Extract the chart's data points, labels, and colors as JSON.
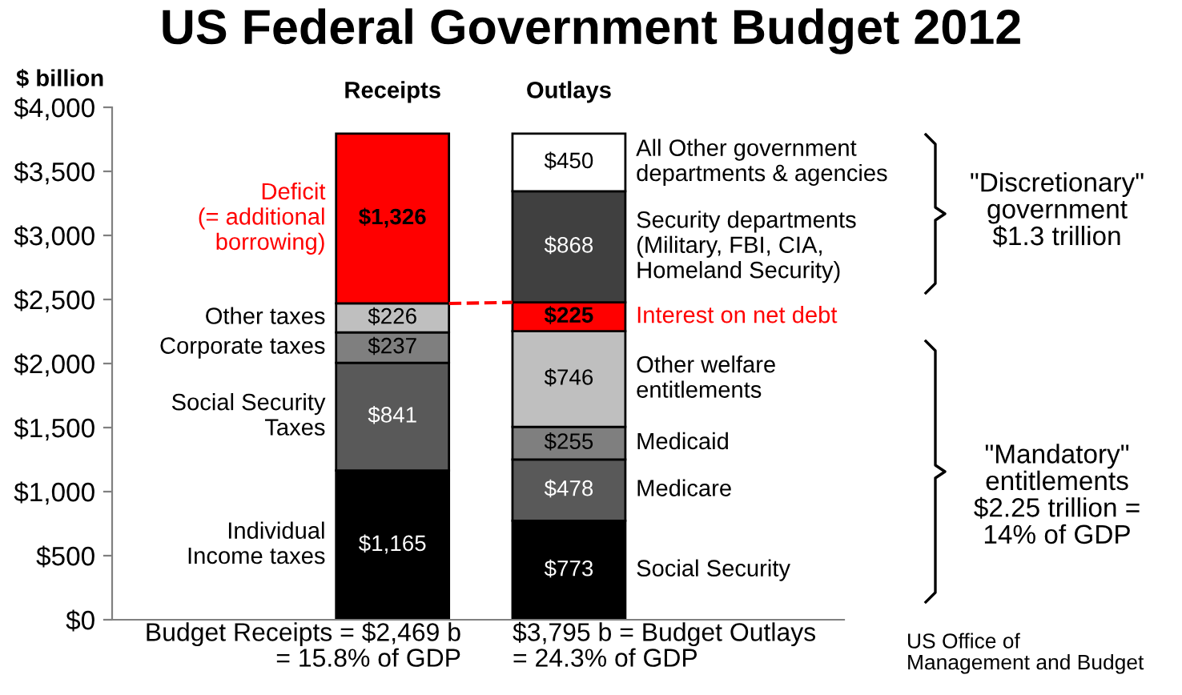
{
  "chart_data": {
    "type": "bar",
    "stacked": true,
    "title": "US Federal Government Budget 2012",
    "ylabel": "$ billion",
    "categories": [
      "Receipts",
      "Outlays"
    ],
    "ylim": [
      0,
      4000
    ],
    "yticks": [
      {
        "value": 0,
        "label": "$0"
      },
      {
        "value": 500,
        "label": "$500"
      },
      {
        "value": 1000,
        "label": "$1,000"
      },
      {
        "value": 1500,
        "label": "$1,500"
      },
      {
        "value": 2000,
        "label": "$2,000"
      },
      {
        "value": 2500,
        "label": "$2,500"
      },
      {
        "value": 3000,
        "label": "$3,000"
      },
      {
        "value": 3500,
        "label": "$3,500"
      },
      {
        "value": 4000,
        "label": "$4,000"
      }
    ],
    "series": [
      {
        "name": "Individual\nIncome taxes",
        "color": "#000000",
        "values": [
          1165,
          null
        ],
        "value_labels": [
          "$1,165",
          null
        ]
      },
      {
        "name": "Social Security\nTaxes",
        "color": "#595959",
        "values": [
          841,
          null
        ],
        "value_labels": [
          "$841",
          null
        ]
      },
      {
        "name": "Corporate taxes",
        "color": "#7f7f7f",
        "values": [
          237,
          null
        ],
        "value_labels": [
          "$237",
          null
        ]
      },
      {
        "name": "Other taxes",
        "color": "#bfbfbf",
        "values": [
          226,
          null
        ],
        "value_labels": [
          "$226",
          null
        ]
      },
      {
        "name": "Deficit\n(= additional\nborrowing)",
        "color": "#ff0000",
        "values": [
          1326,
          null
        ],
        "value_labels": [
          "$1,326",
          null
        ]
      },
      {
        "name": "Social Security",
        "color": "#000000",
        "values": [
          null,
          773
        ],
        "value_labels": [
          null,
          "$773"
        ]
      },
      {
        "name": "Medicare",
        "color": "#595959",
        "values": [
          null,
          478
        ],
        "value_labels": [
          null,
          "$478"
        ]
      },
      {
        "name": "Medicaid",
        "color": "#7f7f7f",
        "values": [
          null,
          255
        ],
        "value_labels": [
          null,
          "$255"
        ]
      },
      {
        "name": "Other welfare\nentitlements",
        "color": "#bfbfbf",
        "values": [
          null,
          746
        ],
        "value_labels": [
          null,
          "$746"
        ]
      },
      {
        "name": "Interest on net debt",
        "color": "#ff0000",
        "values": [
          null,
          225
        ],
        "value_labels": [
          null,
          "$225"
        ]
      },
      {
        "name": "Security departments\n(Military, FBI, CIA,\nHomeland Security)",
        "color": "#404040",
        "values": [
          null,
          868
        ],
        "value_labels": [
          null,
          "$868"
        ]
      },
      {
        "name": "All Other government\ndepartments & agencies",
        "color": "#ffffff",
        "values": [
          null,
          450
        ],
        "value_labels": [
          null,
          "$450"
        ]
      }
    ],
    "annotations": [
      "Budget Receipts = $2,469 b\n= 15.8% of GDP",
      "$3,795 b = Budget Outlays\n= 24.3% of GDP",
      "\"Discretionary\"\ngovernment\n$1.3 trillion",
      "\"Mandatory\"\nentitlements\n$2.25 trillion =\n14% of GDP",
      "US Office of\nManagement and Budget"
    ],
    "grid": false
  }
}
